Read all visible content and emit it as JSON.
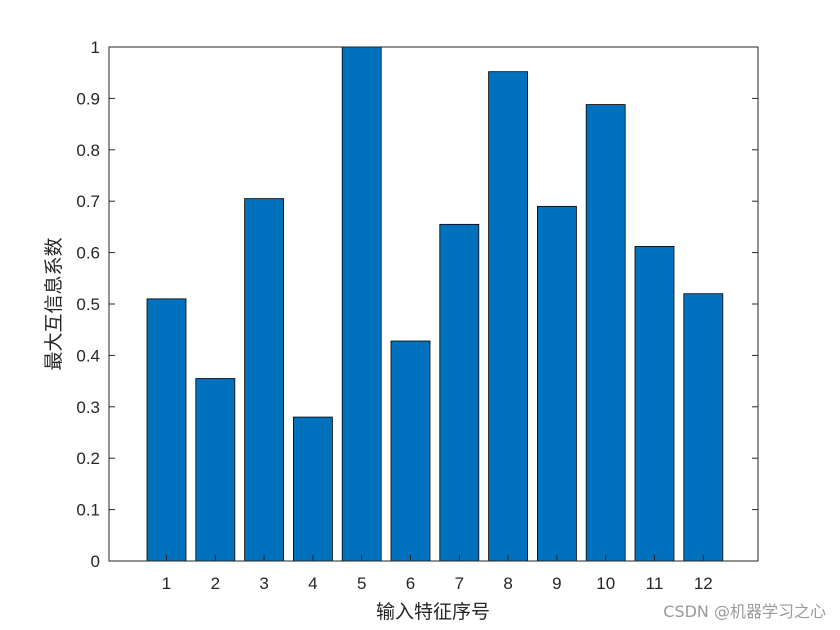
{
  "chart_data": {
    "type": "bar",
    "title": "",
    "categories": [
      "1",
      "2",
      "3",
      "4",
      "5",
      "6",
      "7",
      "8",
      "9",
      "10",
      "11",
      "12"
    ],
    "values": [
      0.51,
      0.355,
      0.705,
      0.28,
      1.0,
      0.428,
      0.655,
      0.952,
      0.69,
      0.888,
      0.612,
      0.52
    ],
    "xlabel": "输入特征序号",
    "ylabel": "最大互信息系数",
    "ylim": [
      0,
      1
    ],
    "yticks": [
      "0",
      "0.1",
      "0.2",
      "0.3",
      "0.4",
      "0.5",
      "0.6",
      "0.7",
      "0.8",
      "0.9",
      "1"
    ],
    "ytick_values": [
      0,
      0.1,
      0.2,
      0.3,
      0.4,
      0.5,
      0.6,
      0.7,
      0.8,
      0.9,
      1.0
    ],
    "bar_color": "#0072BD",
    "grid": false,
    "legend": "none"
  },
  "watermark": "CSDN @机器学习之心"
}
